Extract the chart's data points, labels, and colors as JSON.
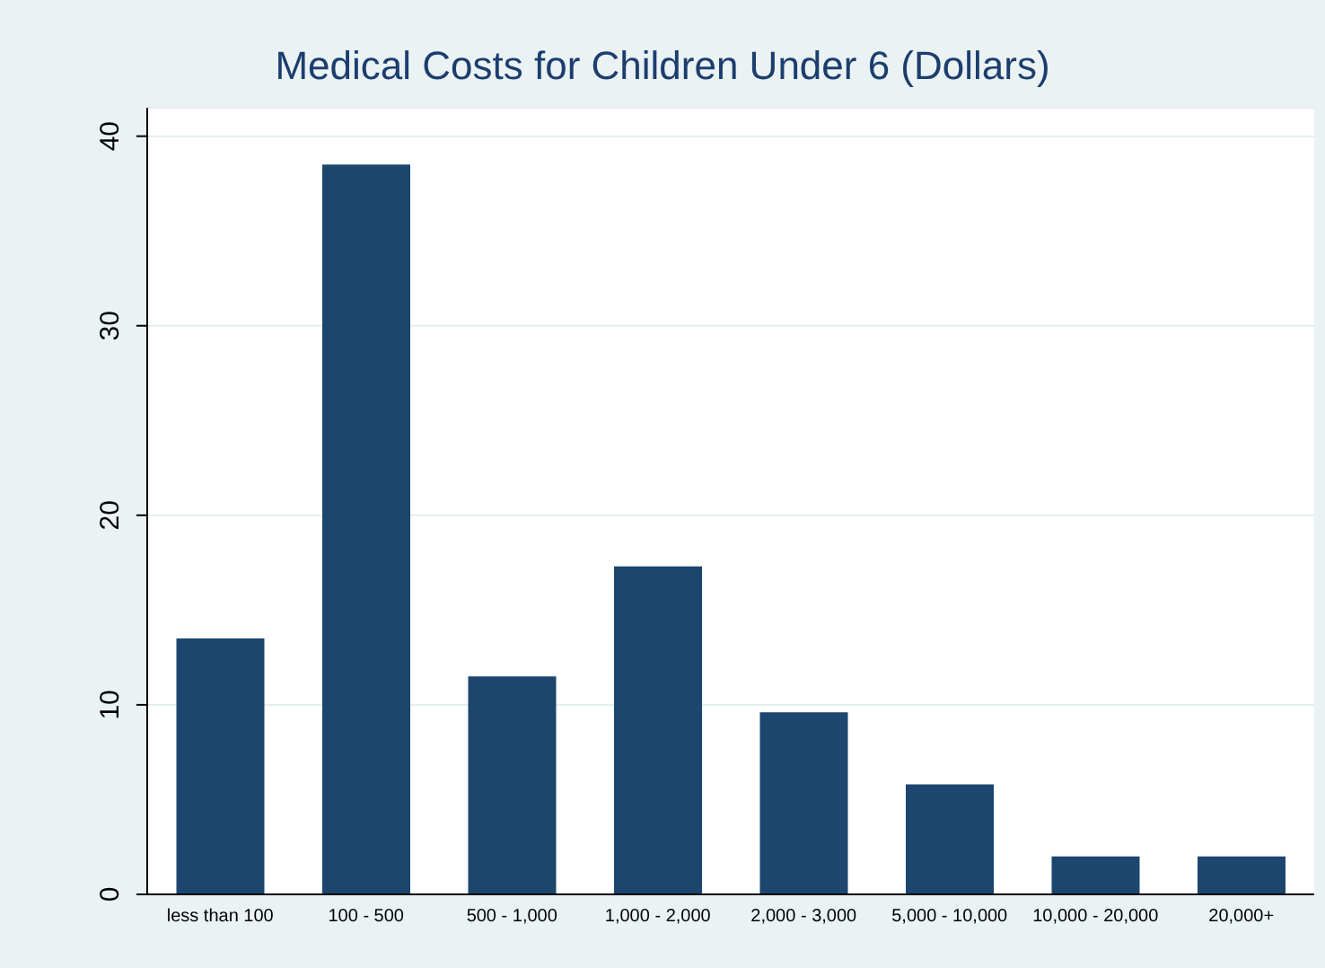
{
  "chart_data": {
    "type": "bar",
    "title": "Medical Costs for Children Under 6 (Dollars)",
    "categories": [
      "less than 100",
      "100 - 500",
      "500 - 1,000",
      "1,000 - 2,000",
      "2,000 - 3,000",
      "5,000 - 10,000",
      "10,000 - 20,000",
      "20,000+"
    ],
    "values": [
      13.5,
      38.5,
      11.5,
      17.3,
      9.6,
      5.8,
      2.0,
      2.0
    ],
    "color": "#1c466e",
    "ylim": [
      0,
      41.5
    ],
    "yticks": [
      0,
      10,
      20,
      30,
      40
    ],
    "grid": "y"
  }
}
